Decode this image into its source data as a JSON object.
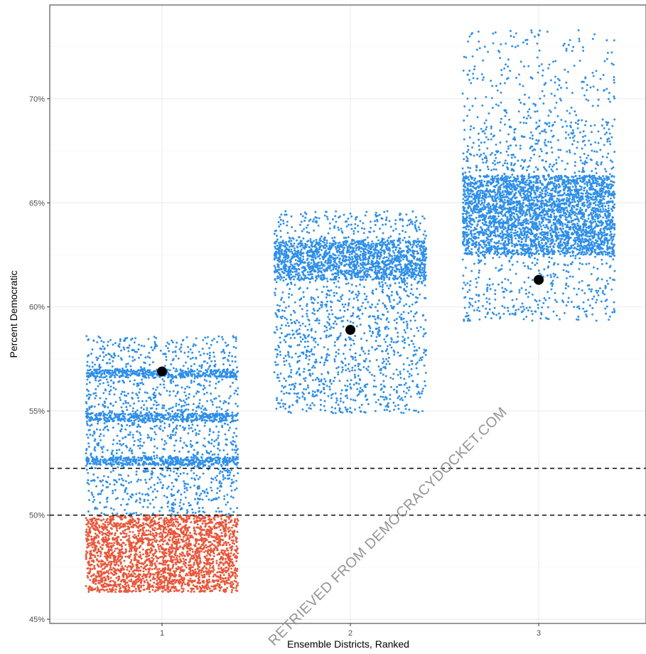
{
  "chart_data": {
    "type": "scatter",
    "title": "",
    "xlabel": "Ensemble Districts, Ranked",
    "ylabel": "Percent Democratic",
    "categories": [
      "1",
      "2",
      "3"
    ],
    "ylim": [
      44.8,
      74.5
    ],
    "y_ticks": [
      {
        "value": 45,
        "label": "45%"
      },
      {
        "value": 50,
        "label": "50%"
      },
      {
        "value": 55,
        "label": "55%"
      },
      {
        "value": 60,
        "label": "60%"
      },
      {
        "value": 65,
        "label": "65%"
      },
      {
        "value": 70,
        "label": "70%"
      }
    ],
    "grid": true,
    "reference_lines": [
      50,
      52.25
    ],
    "colors": {
      "democratic": "#2e8fe8",
      "republican": "#e8573a",
      "enacted": "#000000",
      "reference": "#1a1a1a"
    },
    "ensemble": [
      {
        "x": "1",
        "min": 46.1,
        "max": 58.6,
        "dense_bands": [
          [
            46.3,
            50.0
          ],
          [
            52.4,
            52.8
          ],
          [
            54.5,
            54.9
          ],
          [
            56.6,
            57.0
          ]
        ],
        "below_50_color": "republican"
      },
      {
        "x": "2",
        "min": 54.4,
        "max": 64.6,
        "dense_bands": [
          [
            61.3,
            63.2
          ]
        ]
      },
      {
        "x": "3",
        "min": 59.3,
        "max": 73.3,
        "dense_bands": [
          [
            62.5,
            66.3
          ]
        ]
      }
    ],
    "enacted_points": [
      {
        "x": "1",
        "y": 56.9
      },
      {
        "x": "2",
        "y": 58.9
      },
      {
        "x": "3",
        "y": 61.3
      }
    ]
  },
  "watermark": "RETRIEVED FROM DEMOCRACYDOCKET.COM"
}
